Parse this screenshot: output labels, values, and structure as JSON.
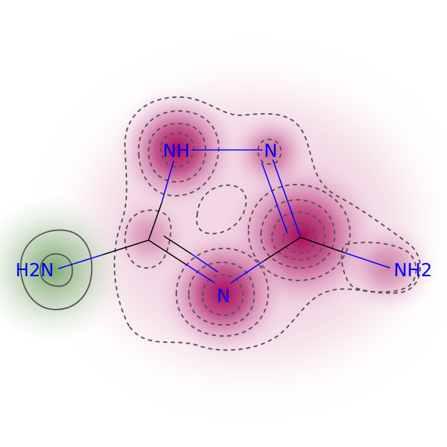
{
  "molecule": {
    "atoms": [
      {
        "id": "nh_top",
        "label": "NH",
        "color": "#0000ff"
      },
      {
        "id": "n_top",
        "label": "N",
        "color": "#0000ff"
      },
      {
        "id": "n_bottom",
        "label": "N",
        "color": "#0000ff"
      },
      {
        "id": "h2n_left",
        "label": "H2N",
        "color": "#0000ff"
      },
      {
        "id": "nh2_right",
        "label": "NH2",
        "color": "#0000ff"
      }
    ]
  },
  "colors": {
    "negative": "#b0005e",
    "positive": "#3a7a2a",
    "bond_carbon": "#000000",
    "bond_nitrogen": "#0000ff",
    "contour": "#555555"
  }
}
